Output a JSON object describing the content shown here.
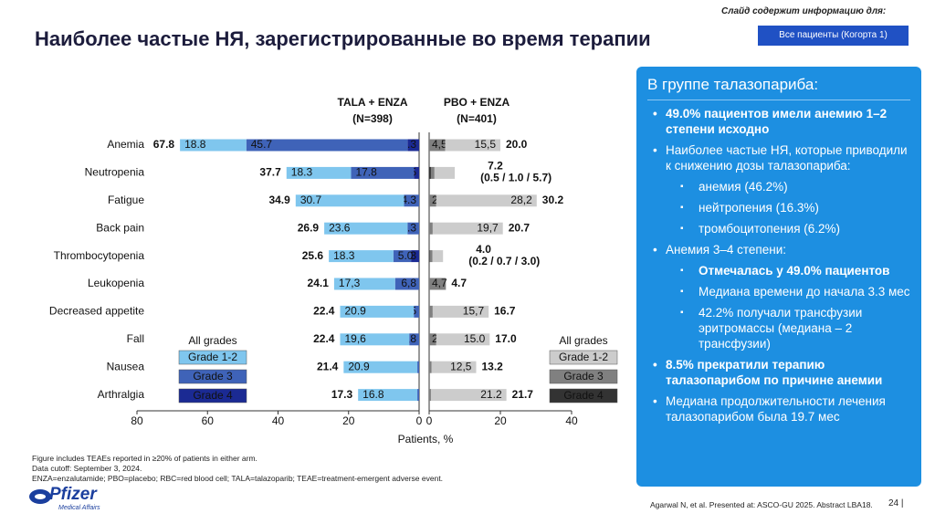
{
  "header": {
    "title": "Наиболее частые НЯ, зарегистрированные во время терапии",
    "audience_note": "Слайд содержит информацию для:",
    "audience_button": "Все пациенты (Когорта 1)"
  },
  "chart_data": {
    "type": "butterfly-bar",
    "categories": [
      "Anemia",
      "Neutropenia",
      "Fatigue",
      "Back pain",
      "Thrombocytopenia",
      "Leukopenia",
      "Decreased appetite",
      "Fall",
      "Nausea",
      "Arthralgia"
    ],
    "xlabel": "Patients, %",
    "left": {
      "title": "TALA + ENZA",
      "n": "(N=398)",
      "title_color": "#1f3aa6",
      "legend_title": "All grades",
      "xlim": [
        80,
        0
      ],
      "xticks": [
        80,
        60,
        40,
        20,
        0
      ],
      "series": [
        {
          "name": "Grade 1-2",
          "color": "#7fc6ee",
          "values": [
            18.8,
            18.3,
            30.7,
            23.6,
            18.3,
            17.3,
            20.9,
            19.6,
            20.9,
            16.8
          ],
          "value_labels": [
            "18.8",
            "18.3",
            "30.7",
            "23.6",
            "18.3",
            "17,3",
            "20.9",
            "19,6",
            "20.9",
            "16.8"
          ]
        },
        {
          "name": "Grade 3",
          "color": "#3f63b8",
          "values": [
            45.7,
            17.8,
            4.3,
            3.3,
            5.0,
            6.8,
            1.5,
            2.8,
            0.5,
            0.5
          ],
          "value_labels": [
            "45.7",
            "17.8",
            "4.3",
            "3.3",
            "5.0",
            "6,8",
            "1.5",
            "2,8",
            "0.5",
            "0.5"
          ]
        },
        {
          "name": "Grade 4",
          "color": "#1b2a93",
          "values": [
            3.3,
            1.5,
            null,
            null,
            2.3,
            null,
            null,
            null,
            null,
            null
          ],
          "value_labels": [
            "3.3",
            "1.5",
            null,
            null,
            "2.3",
            null,
            null,
            null,
            null,
            null
          ]
        }
      ],
      "totals": [
        67.8,
        37.7,
        34.9,
        26.9,
        25.6,
        24.1,
        22.4,
        22.4,
        21.4,
        17.3
      ],
      "total_labels": [
        "67.8",
        "37.7",
        "34.9",
        "26.9",
        "25.6",
        "24.1",
        "22.4",
        "22.4",
        "21.4",
        "17.3"
      ],
      "breakdown_labels": [
        null,
        null,
        null,
        null,
        null,
        null,
        null,
        null,
        null,
        null
      ]
    },
    "right": {
      "title": "PBO + ENZA",
      "n": "(N=401)",
      "title_color": "#111111",
      "legend_title": "All grades",
      "xlim": [
        0,
        40
      ],
      "xticks": [
        0,
        20,
        40
      ],
      "series": [
        {
          "name": "Grade 1-2",
          "color": "#cccccc",
          "values": [
            15.5,
            5.7,
            28.2,
            19.7,
            3.0,
            null,
            15.7,
            15.0,
            12.5,
            21.2
          ],
          "value_labels": [
            "15,5",
            null,
            "28,2",
            "19,7",
            null,
            null,
            "15,7",
            "15.0",
            "12,5",
            "21.2"
          ]
        },
        {
          "name": "Grade 3",
          "color": "#808080",
          "values": [
            4.5,
            1.0,
            2.0,
            1.0,
            0.7,
            4.7,
            1.0,
            2.0,
            0.7,
            0.5
          ],
          "value_labels": [
            "4,5",
            null,
            "2.0",
            "1.0",
            null,
            "4,7",
            "1.0",
            "2.0",
            "0,7",
            "0,5"
          ]
        },
        {
          "name": "Grade 4",
          "color": "#333333",
          "values": [
            null,
            0.5,
            null,
            null,
            0.2,
            null,
            null,
            null,
            null,
            null
          ],
          "value_labels": [
            null,
            null,
            null,
            null,
            null,
            null,
            null,
            null,
            null,
            null
          ]
        }
      ],
      "totals": [
        20.0,
        7.2,
        30.2,
        20.7,
        4.0,
        4.7,
        16.7,
        17.0,
        13.2,
        21.7
      ],
      "total_labels": [
        "20.0",
        "7.2",
        "30.2",
        "20.7",
        "4.0",
        "4.7",
        "16.7",
        "17.0",
        "13.2",
        "21.7"
      ],
      "breakdown_labels": [
        null,
        "(0.5 / 1.0 / 5.7)",
        null,
        null,
        "(0.2 / 0.7 / 3.0)",
        null,
        null,
        null,
        null,
        null
      ]
    }
  },
  "panel": {
    "title": "В группе талазопариба:",
    "items": [
      {
        "text": "49.0% пациентов имели анемию 1–2 степени исходно",
        "bold": true,
        "subitems": []
      },
      {
        "text": "Наиболее частые НЯ, которые приводили к снижению дозы талазопариба:",
        "bold": false,
        "subitems": [
          {
            "text": "анемия (46.2%)",
            "bold": false
          },
          {
            "text": "нейтропения (16.3%)",
            "bold": false
          },
          {
            "text": "тромбоцитопения (6.2%)",
            "bold": false
          }
        ]
      },
      {
        "text": "Анемия 3–4  степени:",
        "bold": false,
        "subitems": [
          {
            "text": "Отмечалась у 49.0% пациентов",
            "bold": true
          },
          {
            "text": "Медиана времени до начала 3.3 мес",
            "bold": false
          },
          {
            "text": "42.2% получали трансфузии эритромассы (медиана – 2 трансфузии)",
            "bold": false
          }
        ]
      },
      {
        "text": "8.5% прекратили терапию талазопарибом по причине анемии",
        "bold": true,
        "subitems": []
      },
      {
        "text": "Медиана продолжительности лечения талазопарибом была 19.7 мес",
        "bold": false,
        "subitems": []
      }
    ]
  },
  "footer": {
    "notes": [
      "Figure includes TEAEs reported in ≥20% of patients in either arm.",
      "Data cutoff: September 3, 2024.",
      "ENZA=enzalutamide; PBO=placebo; RBC=red blood cell; TALA=talazoparib; TEAE=treatment-emergent adverse event."
    ],
    "logo": "Pfizer",
    "logo_sub": "Medical Affairs",
    "citation": "Agarwal N, et al. Presented at: ASCO-GU 2025. Abstract LBA18.",
    "page": "24 |"
  }
}
